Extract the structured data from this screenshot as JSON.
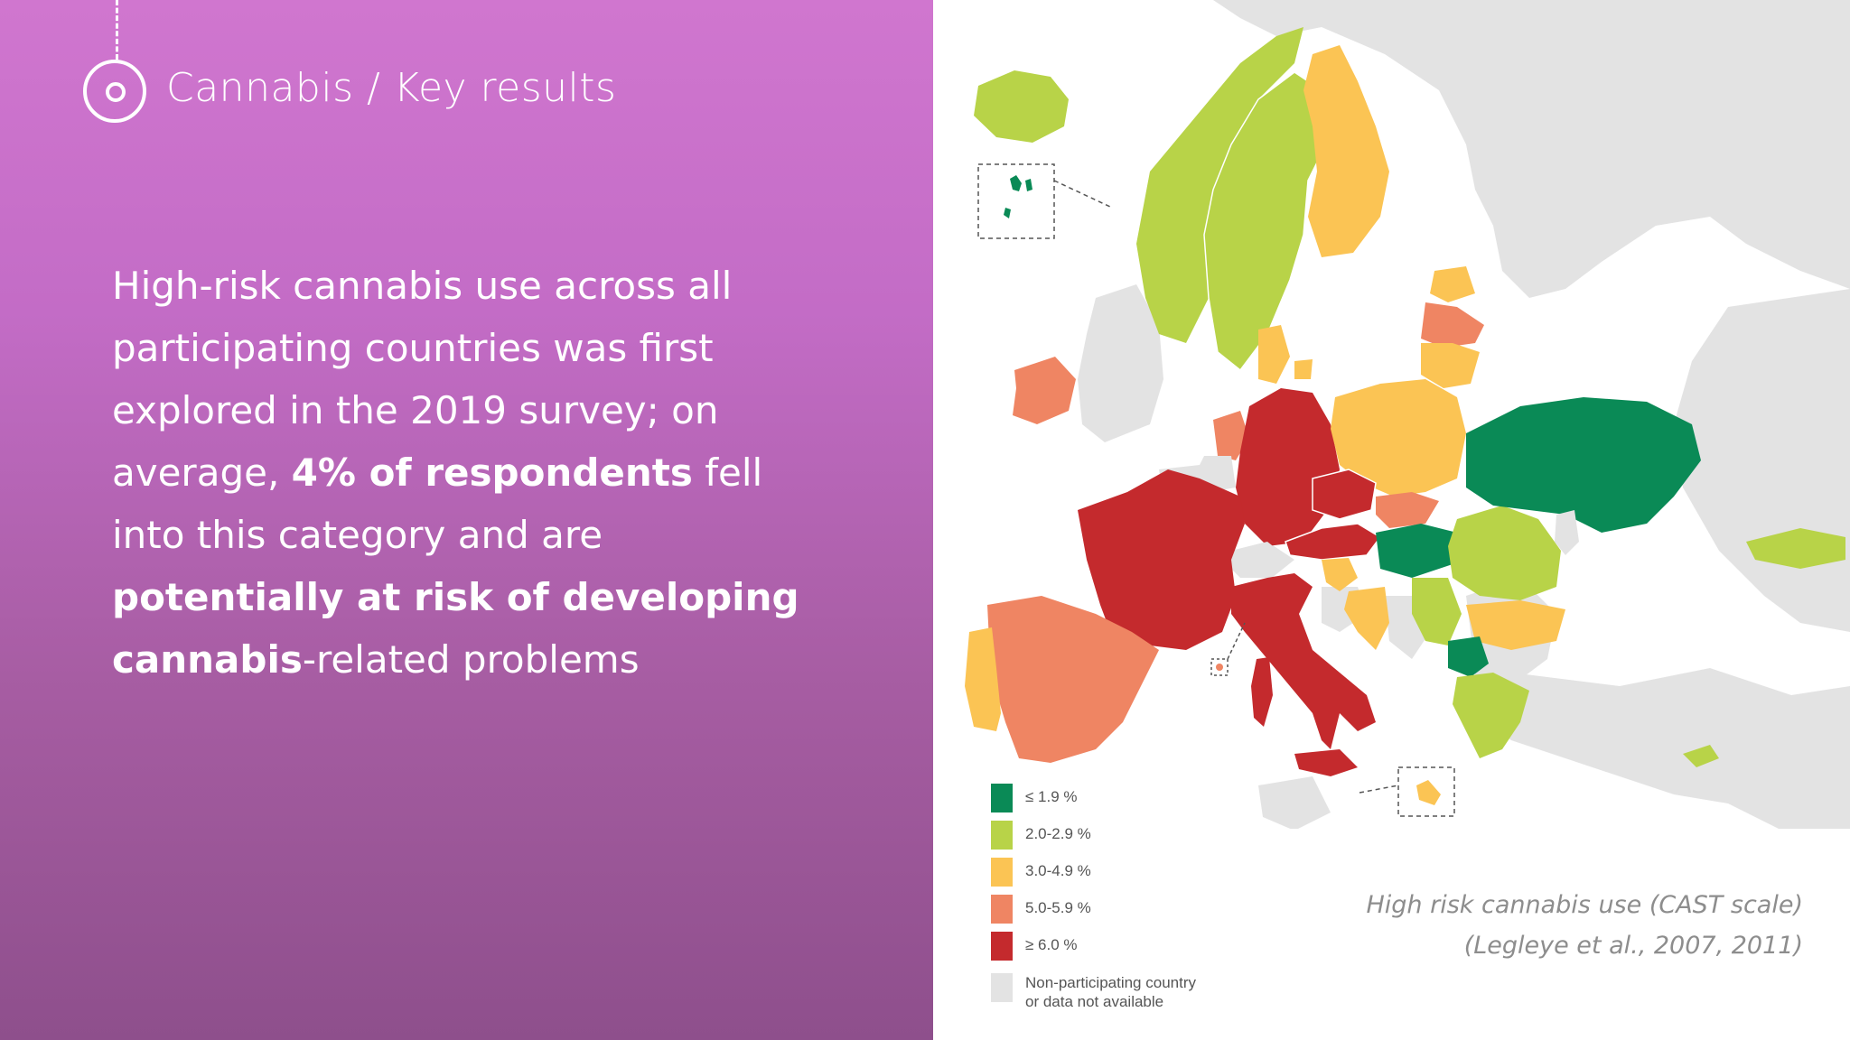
{
  "slide": {
    "section_title": "Cannabis / Key results",
    "body_text": {
      "part1": "High-risk cannabis use  across all participating countries  was first explored in the 2019 survey; on average, ",
      "bold1": "4% of respondents",
      "part2": " fell into this category and are ",
      "bold2": "potentially at risk of developing cannabis",
      "part3": "-related problems"
    }
  },
  "map": {
    "legend": [
      {
        "label": "≤ 1.9 %",
        "color": "#0a8a56"
      },
      {
        "label": "2.0-2.9 %",
        "color": "#b8d348"
      },
      {
        "label": "3.0-4.9 %",
        "color": "#fbc454"
      },
      {
        "label": "5.0-5.9 %",
        "color": "#ef8563"
      },
      {
        "label": "≥ 6.0 %",
        "color": "#c42a2d"
      },
      {
        "label_line1": "Non-participating country",
        "label_line2": "or data not available",
        "color": "#e3e3e3"
      }
    ],
    "caption_line1": "High risk cannabis use (CAST scale)",
    "caption_line2": "(Legleye et al., 2007, 2011)",
    "colors": {
      "very_low": "#0a8a56",
      "low": "#b8d348",
      "medium": "#fbc454",
      "high": "#ef8563",
      "very_high": "#c42a2d",
      "no_data": "#e3e3e3"
    }
  }
}
